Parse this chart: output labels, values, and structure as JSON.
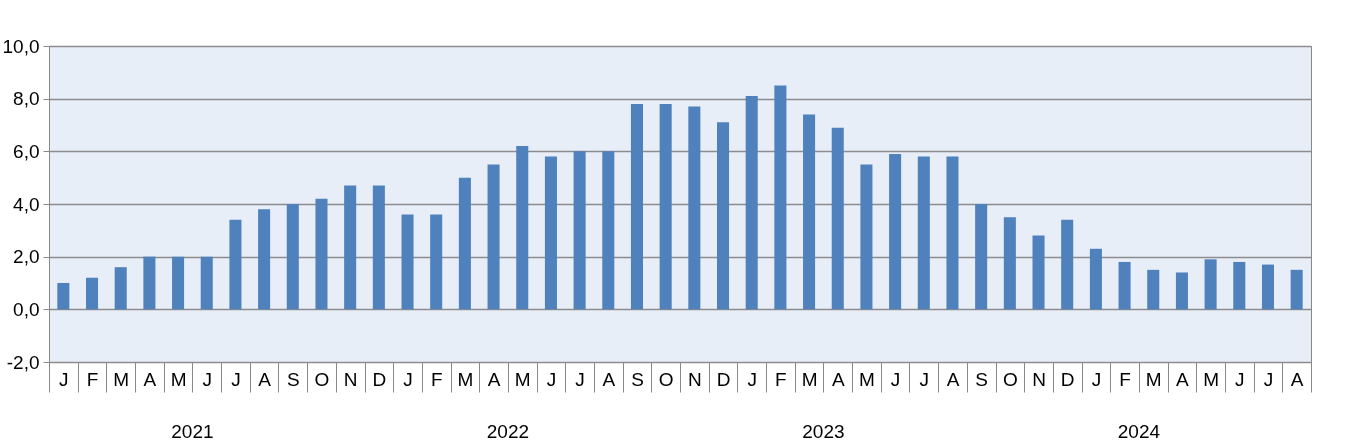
{
  "chart_data": {
    "type": "bar",
    "categories": [
      "J",
      "F",
      "M",
      "A",
      "M",
      "J",
      "J",
      "A",
      "S",
      "O",
      "N",
      "D",
      "J",
      "F",
      "M",
      "A",
      "M",
      "J",
      "J",
      "A",
      "S",
      "O",
      "N",
      "D",
      "J",
      "F",
      "M",
      "A",
      "M",
      "J",
      "J",
      "A",
      "S",
      "O",
      "N",
      "D",
      "J",
      "F",
      "M",
      "A",
      "M",
      "J",
      "J",
      "A"
    ],
    "values": [
      1.0,
      1.2,
      1.6,
      2.0,
      2.0,
      2.0,
      3.4,
      3.8,
      4.0,
      4.2,
      4.7,
      4.7,
      3.6,
      3.6,
      5.0,
      5.5,
      6.2,
      5.8,
      6.0,
      6.0,
      7.8,
      7.8,
      7.7,
      7.1,
      8.1,
      8.5,
      7.4,
      6.9,
      5.5,
      5.9,
      5.8,
      5.8,
      4.0,
      3.5,
      2.8,
      3.4,
      2.3,
      1.8,
      1.5,
      1.4,
      1.9,
      1.8,
      1.7,
      1.5
    ],
    "color": "#4f81bd",
    "ylim": [
      -2,
      10
    ],
    "yticks": [
      {
        "value": -2,
        "label": "-2,0"
      },
      {
        "value": 0,
        "label": "0,0"
      },
      {
        "value": 2,
        "label": "2,0"
      },
      {
        "value": 4,
        "label": "4,0"
      },
      {
        "value": 6,
        "label": "6,0"
      },
      {
        "value": 8,
        "label": "8,0"
      },
      {
        "value": 10,
        "label": "10,0"
      }
    ],
    "grid": "y",
    "annotations": [
      "2021",
      "2022",
      "2023",
      "2024"
    ]
  }
}
